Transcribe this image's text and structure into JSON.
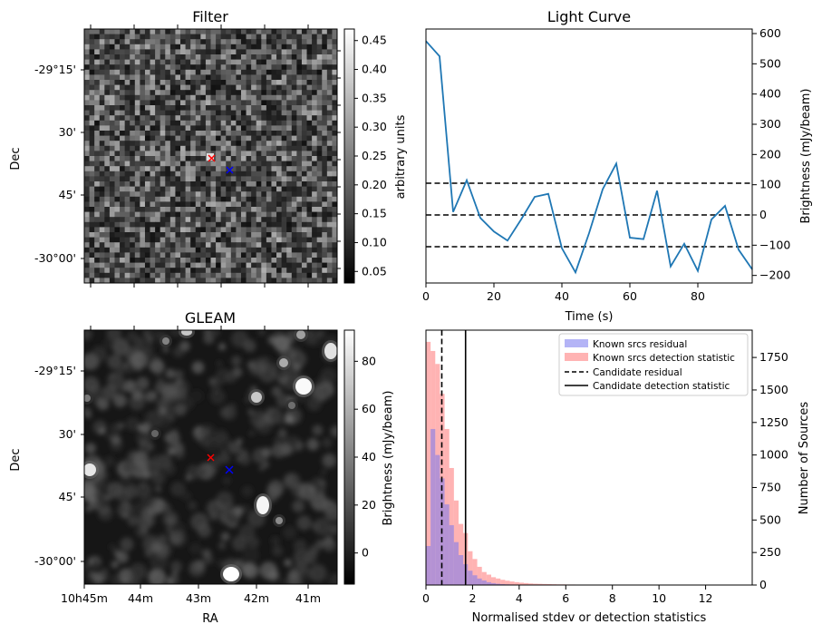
{
  "colors": {
    "line": "#1f77b4",
    "red_marker": "#ff0000",
    "blue_marker": "#0000ff",
    "hist_known_residual": "#7777ee",
    "hist_known_detection": "#ff8080"
  },
  "chart_data": [
    {
      "type": "heatmap",
      "title": "Filter",
      "xlabel": "",
      "ylabel": "Dec",
      "yticks": [
        "-29°15'",
        "30'",
        "45'",
        "-30°00'"
      ],
      "colorbar": {
        "label": "arbitrary units",
        "range": [
          0.03,
          0.47
        ],
        "ticks": [
          "0.05",
          "0.10",
          "0.15",
          "0.20",
          "0.25",
          "0.30",
          "0.35",
          "0.40",
          "0.45"
        ]
      },
      "markers": [
        {
          "symbol": "x",
          "color": "red",
          "ra_min": 42.9,
          "dec_arcmin_below_29": 36.5
        },
        {
          "symbol": "x",
          "color": "blue",
          "ra_min": 42.5,
          "dec_arcmin_below_29": 39.0
        }
      ]
    },
    {
      "type": "line",
      "title": "Light Curve",
      "xlabel": "Time (s)",
      "ylabel": "Brightness (mJy/beam)",
      "xlim": [
        0,
        96
      ],
      "ylim": [
        -225,
        615
      ],
      "xticks": [
        "0",
        "20",
        "40",
        "60",
        "80"
      ],
      "yticks": [
        "-200",
        "-100",
        "0",
        "100",
        "200",
        "300",
        "400",
        "500",
        "600"
      ],
      "x": [
        0,
        4,
        8,
        12,
        16,
        20,
        24,
        28,
        32,
        36,
        40,
        44,
        48,
        52,
        56,
        60,
        64,
        68,
        72,
        76,
        80,
        84,
        88,
        92,
        96
      ],
      "y": [
        575,
        525,
        10,
        115,
        -10,
        -55,
        -85,
        -15,
        60,
        70,
        -110,
        -190,
        -60,
        85,
        170,
        -75,
        -80,
        80,
        -170,
        -95,
        -185,
        -15,
        30,
        -115,
        -180
      ],
      "hlines": [
        105,
        0,
        -105
      ]
    },
    {
      "type": "heatmap",
      "title": "GLEAM",
      "xlabel": "RA",
      "ylabel": "Dec",
      "xticks": [
        "10h45m",
        "44m",
        "43m",
        "42m",
        "41m"
      ],
      "yticks": [
        "-29°15'",
        "30'",
        "45'",
        "-30°00'"
      ],
      "colorbar": {
        "label": "Brightness (mJy/beam)",
        "range": [
          -13,
          93
        ],
        "ticks": [
          "0",
          "20",
          "40",
          "60",
          "80"
        ]
      },
      "markers": [
        {
          "symbol": "x",
          "color": "red"
        },
        {
          "symbol": "x",
          "color": "blue"
        }
      ]
    },
    {
      "type": "bar",
      "title": "",
      "xlabel": "Normalised stdev or detection statistics",
      "ylabel": "Number of Sources",
      "xlim": [
        0,
        14
      ],
      "ylim": [
        0,
        1960
      ],
      "xticks": [
        "0",
        "2",
        "4",
        "6",
        "8",
        "10",
        "12"
      ],
      "yticks": [
        "0",
        "250",
        "500",
        "750",
        "1000",
        "1250",
        "1500",
        "1750"
      ],
      "bin_width": 0.2,
      "legend_position": "top-right",
      "legend": [
        "Known srcs residual",
        "Known srcs detection statistic",
        "Candidate residual",
        "Candidate detection statistic"
      ],
      "series": [
        {
          "name": "Known srcs residual",
          "values": [
            300,
            1200,
            1000,
            820,
            620,
            460,
            330,
            230,
            160,
            110,
            75,
            50,
            35,
            22,
            15,
            10,
            7,
            5,
            4,
            3,
            2,
            2,
            1,
            1
          ]
        },
        {
          "name": "Known srcs detection statistic",
          "values": [
            1870,
            1800,
            1700,
            1470,
            1200,
            900,
            650,
            470,
            400,
            260,
            200,
            140,
            100,
            80,
            60,
            50,
            40,
            33,
            27,
            22,
            18,
            15,
            12,
            10,
            9,
            8,
            7,
            6,
            5,
            5,
            4,
            4,
            3,
            3,
            3,
            2,
            2,
            2,
            2,
            2,
            2,
            2,
            1,
            1,
            1,
            1,
            1,
            1,
            1,
            1,
            1,
            1,
            1,
            1,
            1,
            1,
            1,
            1,
            1,
            1,
            1,
            1,
            1,
            1,
            1
          ]
        }
      ],
      "vlines": [
        {
          "name": "Candidate residual",
          "x": 0.68,
          "style": "dashed"
        },
        {
          "name": "Candidate detection statistic",
          "x": 1.7,
          "style": "solid"
        }
      ]
    }
  ]
}
